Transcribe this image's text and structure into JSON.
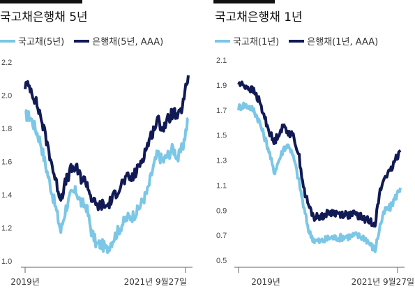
{
  "panels": [
    {
      "title": "국고채은행채 5년",
      "legend": [
        {
          "label": "국고채(5년)",
          "color": "#7cc6e6"
        },
        {
          "label": "은행채(5년, AAA)",
          "color": "#121a55"
        }
      ]
    },
    {
      "title": "국고채은행채 1년",
      "legend": [
        {
          "label": "국고채(1년)",
          "color": "#7cc6e6"
        },
        {
          "label": "은행채(1년, AAA)",
          "color": "#121a55"
        }
      ]
    }
  ],
  "chart_data": [
    {
      "type": "line",
      "title": "국고채은행채 5년",
      "ylim": [
        1.0,
        2.2
      ],
      "yticks": [
        "2.2",
        "2.0",
        "1.8",
        "1.6",
        "1.4",
        "1.2",
        "1.0"
      ],
      "xtick_labels": [
        "2019년",
        "2021년 9월27일"
      ],
      "x": [
        "2019-01",
        "2019-02",
        "2019-03",
        "2019-04",
        "2019-05",
        "2019-06",
        "2019-07",
        "2019-08",
        "2019-09",
        "2019-10",
        "2019-11",
        "2019-12",
        "2020-01",
        "2020-02",
        "2020-03",
        "2020-04",
        "2020-05",
        "2020-06",
        "2020-07",
        "2020-08",
        "2020-09",
        "2020-10",
        "2020-11",
        "2020-12",
        "2021-01",
        "2021-02",
        "2021-03",
        "2021-04",
        "2021-05",
        "2021-06",
        "2021-07",
        "2021-08",
        "2021-09-27"
      ],
      "series": [
        {
          "name": "국고채(5년)",
          "color": "#7cc6e6",
          "values": [
            1.88,
            1.87,
            1.8,
            1.72,
            1.58,
            1.45,
            1.32,
            1.18,
            1.32,
            1.4,
            1.42,
            1.35,
            1.33,
            1.18,
            1.1,
            1.1,
            1.07,
            1.12,
            1.17,
            1.22,
            1.26,
            1.27,
            1.3,
            1.36,
            1.42,
            1.55,
            1.65,
            1.6,
            1.64,
            1.68,
            1.62,
            1.7,
            1.86
          ]
        },
        {
          "name": "은행채(5년, AAA)",
          "color": "#121a55",
          "values": [
            2.06,
            2.05,
            1.97,
            1.88,
            1.75,
            1.62,
            1.48,
            1.38,
            1.48,
            1.55,
            1.56,
            1.5,
            1.48,
            1.38,
            1.33,
            1.34,
            1.33,
            1.37,
            1.42,
            1.47,
            1.5,
            1.5,
            1.55,
            1.62,
            1.7,
            1.78,
            1.85,
            1.8,
            1.85,
            1.9,
            1.86,
            1.95,
            2.12
          ]
        }
      ]
    },
    {
      "type": "line",
      "title": "국고채은행채 1년",
      "ylim": [
        0.5,
        2.1
      ],
      "yticks": [
        "2.1",
        "1.9",
        "1.7",
        "1.5",
        "1.3",
        "1.1",
        "0.9",
        "0.7",
        "0.5"
      ],
      "xtick_labels": [
        "2019년",
        "2021년 9월27일"
      ],
      "x": [
        "2019-01",
        "2019-02",
        "2019-03",
        "2019-04",
        "2019-05",
        "2019-06",
        "2019-07",
        "2019-08",
        "2019-09",
        "2019-10",
        "2019-11",
        "2019-12",
        "2020-01",
        "2020-02",
        "2020-03",
        "2020-04",
        "2020-05",
        "2020-06",
        "2020-07",
        "2020-08",
        "2020-09",
        "2020-10",
        "2020-11",
        "2020-12",
        "2021-01",
        "2021-02",
        "2021-03",
        "2021-04",
        "2021-05",
        "2021-06",
        "2021-07",
        "2021-08",
        "2021-09-27"
      ],
      "series": [
        {
          "name": "국고채(1년)",
          "color": "#7cc6e6",
          "values": [
            1.72,
            1.74,
            1.73,
            1.7,
            1.62,
            1.5,
            1.38,
            1.2,
            1.3,
            1.4,
            1.42,
            1.3,
            1.12,
            0.9,
            0.72,
            0.66,
            0.65,
            0.66,
            0.68,
            0.68,
            0.68,
            0.69,
            0.69,
            0.7,
            0.69,
            0.68,
            0.63,
            0.58,
            0.78,
            0.9,
            0.92,
            1.0,
            1.08
          ]
        },
        {
          "name": "은행채(1년, AAA)",
          "color": "#121a55",
          "values": [
            1.91,
            1.9,
            1.88,
            1.85,
            1.78,
            1.66,
            1.54,
            1.44,
            1.52,
            1.57,
            1.52,
            1.48,
            1.32,
            1.05,
            0.92,
            0.84,
            0.85,
            0.86,
            0.88,
            0.88,
            0.87,
            0.87,
            0.86,
            0.87,
            0.85,
            0.83,
            0.81,
            0.8,
            1.05,
            1.18,
            1.2,
            1.3,
            1.38
          ]
        }
      ]
    }
  ]
}
